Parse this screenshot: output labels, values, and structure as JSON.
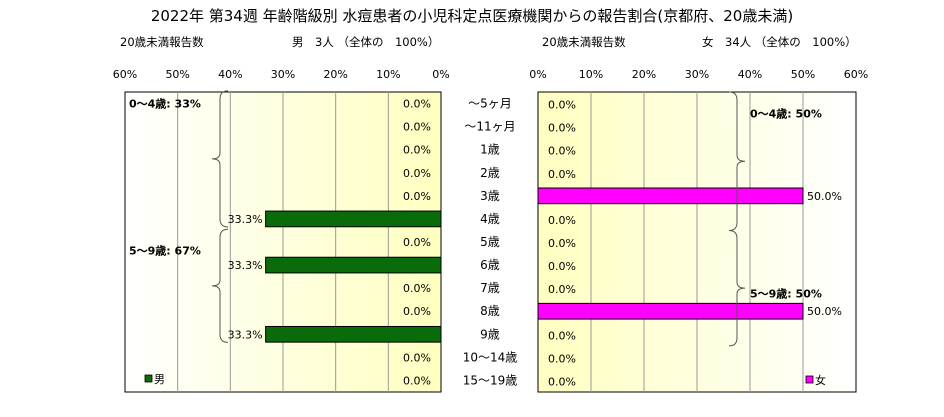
{
  "title": "2022年 第34週 年齢階級別 水痘患者の小児科定点医療機関からの報告割合(京都府、20歳未満)",
  "left_header": {
    "label": "20歳未満報告数",
    "summary": "男　3人 （全体の　100%）"
  },
  "right_header": {
    "label": "20歳未満報告数",
    "summary": "女　34人 （全体の　100%）"
  },
  "chart_data": {
    "type": "bar",
    "orientation": "horizontal-butterfly",
    "categories": [
      "～5ヶ月",
      "～11ヶ月",
      "1歳",
      "2歳",
      "3歳",
      "4歳",
      "5歳",
      "6歳",
      "7歳",
      "8歳",
      "9歳",
      "10～14歳",
      "15～19歳"
    ],
    "x_ticks": [
      "60%",
      "50%",
      "40%",
      "30%",
      "20%",
      "10%",
      "0%"
    ],
    "x_ticks_right": [
      "0%",
      "10%",
      "20%",
      "30%",
      "40%",
      "50%",
      "60%"
    ],
    "xlim": [
      0,
      60
    ],
    "grid": true,
    "series": [
      {
        "name": "男",
        "side": "left",
        "color": "#0a6b0a",
        "values": [
          0,
          0,
          0,
          0,
          0,
          33.3,
          0,
          33.3,
          0,
          0,
          33.3,
          0,
          0
        ],
        "labels": [
          "0.0%",
          "0.0%",
          "0.0%",
          "0.0%",
          "0.0%",
          "33.3%",
          "0.0%",
          "33.3%",
          "0.0%",
          "0.0%",
          "33.3%",
          "0.0%",
          "0.0%"
        ]
      },
      {
        "name": "女",
        "side": "right",
        "color": "#ff00ff",
        "values": [
          0,
          0,
          0,
          0,
          50.0,
          0,
          0,
          0,
          0,
          50.0,
          0,
          0,
          0
        ],
        "labels": [
          "0.0%",
          "0.0%",
          "0.0%",
          "0.0%",
          "50.0%",
          "0.0%",
          "0.0%",
          "0.0%",
          "0.0%",
          "50.0%",
          "0.0%",
          "0.0%",
          "0.0%"
        ]
      }
    ],
    "annotations": {
      "left": [
        {
          "text": "0～4歳: 33%",
          "from": 0,
          "to": 5
        },
        {
          "text": "5～9歳: 67%",
          "from": 6,
          "to": 10
        }
      ],
      "right": [
        {
          "text": "0～4歳: 50%",
          "from": 0,
          "to": 5
        },
        {
          "text": "5～9歳: 50%",
          "from": 6,
          "to": 10
        }
      ]
    },
    "legend": {
      "left": "男",
      "right": "女",
      "placement": "bottom"
    }
  }
}
